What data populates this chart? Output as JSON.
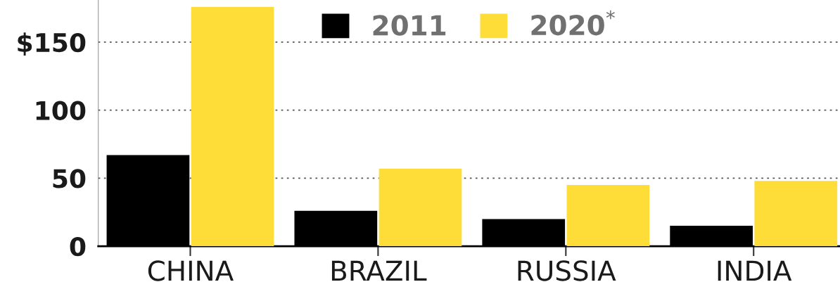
{
  "chart_data": {
    "type": "bar",
    "categories": [
      "CHINA",
      "BRAZIL",
      "RUSSIA",
      "INDIA"
    ],
    "series": [
      {
        "name": "2011",
        "color": "#000000",
        "values": [
          67,
          26,
          20,
          15
        ]
      },
      {
        "name": "2020$^{*}$",
        "color": "#fedd38",
        "values": [
          176,
          57,
          45,
          48
        ]
      }
    ],
    "ylim": [
      0,
      181
    ],
    "yticks": [
      0,
      50,
      100,
      {
        "value": 150,
        "label": "$150"
      }
    ],
    "grid": "y",
    "legend": "top"
  }
}
